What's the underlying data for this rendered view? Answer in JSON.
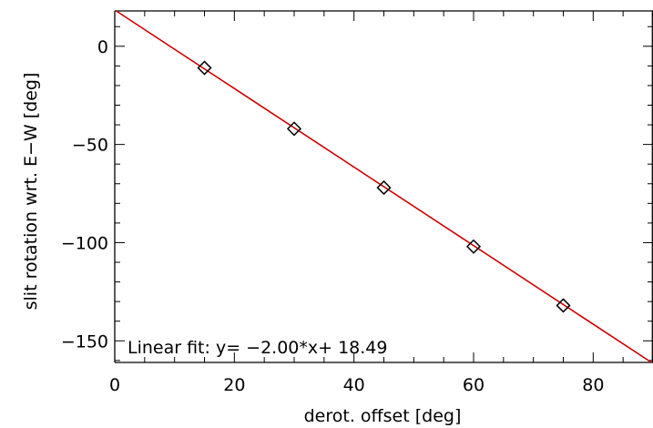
{
  "chart_data": {
    "type": "scatter",
    "xlabel": "derot. offset [deg]",
    "ylabel": "slit rotation wrt. E−W [deg]",
    "xlim": [
      0,
      90
    ],
    "ylim": [
      -161,
      18
    ],
    "x_ticks": [
      0,
      20,
      40,
      60,
      80
    ],
    "x_tick_labels": [
      "0",
      "20",
      "40",
      "60",
      "80"
    ],
    "y_ticks": [
      -150,
      -100,
      -50,
      0
    ],
    "y_tick_labels": [
      "−150",
      "−100",
      "−50",
      "0"
    ],
    "x_minor_step": 5,
    "y_minor_step": 10,
    "grid": false,
    "series": [
      {
        "marker": "diamond",
        "color": "#000000",
        "x": [
          15,
          30,
          45,
          60,
          75
        ],
        "y": [
          -11,
          -42,
          -72,
          -102,
          -132
        ]
      }
    ],
    "fit": {
      "color": "#cc0000",
      "slope": -2.0,
      "intercept": 18.49,
      "label": "Linear fit: y= −2.00*x+ 18.49"
    }
  }
}
